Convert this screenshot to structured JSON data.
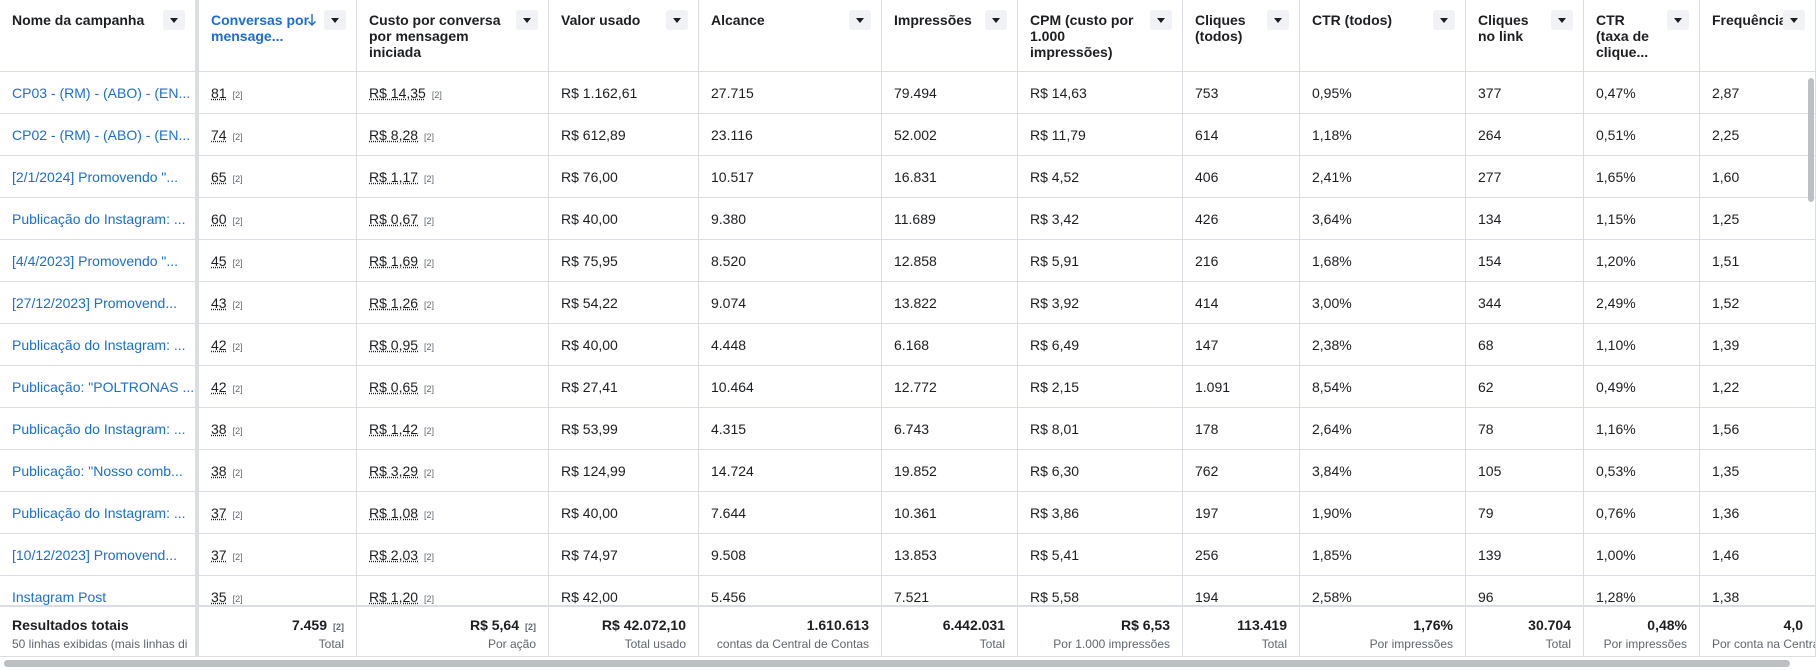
{
  "table": {
    "headers": [
      "Nome da campanha",
      "Conversas por mensage...",
      "Custo por conversa por mensagem iniciada",
      "Valor usado",
      "Alcance",
      "Impressões",
      "CPM (custo por 1.000 impressões)",
      "Cliques (todos)",
      "CTR (todos)",
      "Cliques no link",
      "CTR (taxa de clique...",
      "Frequência"
    ],
    "rows": [
      [
        "CP03 - (RM) - (ABO) - (EN...",
        {
          "value": "81",
          "note": "[2]"
        },
        {
          "value": "R$ 14,35",
          "note": "[2]"
        },
        "R$ 1.162,61",
        "27.715",
        "79.494",
        "R$ 14,63",
        "753",
        "0,95%",
        "377",
        "0,47%",
        "2,87"
      ],
      [
        "CP02 - (RM) - (ABO) - (EN...",
        {
          "value": "74",
          "note": "[2]"
        },
        {
          "value": "R$ 8,28",
          "note": "[2]"
        },
        "R$ 612,89",
        "23.116",
        "52.002",
        "R$ 11,79",
        "614",
        "1,18%",
        "264",
        "0,51%",
        "2,25"
      ],
      [
        "[2/1/2024] Promovendo \"...",
        {
          "value": "65",
          "note": "[2]"
        },
        {
          "value": "R$ 1,17",
          "note": "[2]"
        },
        "R$ 76,00",
        "10.517",
        "16.831",
        "R$ 4,52",
        "406",
        "2,41%",
        "277",
        "1,65%",
        "1,60"
      ],
      [
        "Publicação do Instagram: ...",
        {
          "value": "60",
          "note": "[2]"
        },
        {
          "value": "R$ 0,67",
          "note": "[2]"
        },
        "R$ 40,00",
        "9.380",
        "11.689",
        "R$ 3,42",
        "426",
        "3,64%",
        "134",
        "1,15%",
        "1,25"
      ],
      [
        "[4/4/2023] Promovendo \"...",
        {
          "value": "45",
          "note": "[2]"
        },
        {
          "value": "R$ 1,69",
          "note": "[2]"
        },
        "R$ 75,95",
        "8.520",
        "12.858",
        "R$ 5,91",
        "216",
        "1,68%",
        "154",
        "1,20%",
        "1,51"
      ],
      [
        "[27/12/2023] Promovend...",
        {
          "value": "43",
          "note": "[2]"
        },
        {
          "value": "R$ 1,26",
          "note": "[2]"
        },
        "R$ 54,22",
        "9.074",
        "13.822",
        "R$ 3,92",
        "414",
        "3,00%",
        "344",
        "2,49%",
        "1,52"
      ],
      [
        "Publicação do Instagram: ...",
        {
          "value": "42",
          "note": "[2]"
        },
        {
          "value": "R$ 0,95",
          "note": "[2]"
        },
        "R$ 40,00",
        "4.448",
        "6.168",
        "R$ 6,49",
        "147",
        "2,38%",
        "68",
        "1,10%",
        "1,39"
      ],
      [
        "Publicação: \"POLTRONAS ...",
        {
          "value": "42",
          "note": "[2]"
        },
        {
          "value": "R$ 0,65",
          "note": "[2]"
        },
        "R$ 27,41",
        "10.464",
        "12.772",
        "R$ 2,15",
        "1.091",
        "8,54%",
        "62",
        "0,49%",
        "1,22"
      ],
      [
        "Publicação do Instagram: ...",
        {
          "value": "38",
          "note": "[2]"
        },
        {
          "value": "R$ 1,42",
          "note": "[2]"
        },
        "R$ 53,99",
        "4.315",
        "6.743",
        "R$ 8,01",
        "178",
        "2,64%",
        "78",
        "1,16%",
        "1,56"
      ],
      [
        "Publicação: \"Nosso comb...",
        {
          "value": "38",
          "note": "[2]"
        },
        {
          "value": "R$ 3,29",
          "note": "[2]"
        },
        "R$ 124,99",
        "14.724",
        "19.852",
        "R$ 6,30",
        "762",
        "3,84%",
        "105",
        "0,53%",
        "1,35"
      ],
      [
        "Publicação do Instagram: ...",
        {
          "value": "37",
          "note": "[2]"
        },
        {
          "value": "R$ 1,08",
          "note": "[2]"
        },
        "R$ 40,00",
        "7.644",
        "10.361",
        "R$ 3,86",
        "197",
        "1,90%",
        "79",
        "0,76%",
        "1,36"
      ],
      [
        "[10/12/2023] Promovend...",
        {
          "value": "37",
          "note": "[2]"
        },
        {
          "value": "R$ 2,03",
          "note": "[2]"
        },
        "R$ 74,97",
        "9.508",
        "13.853",
        "R$ 5,41",
        "256",
        "1,85%",
        "139",
        "1,00%",
        "1,46"
      ],
      [
        "Instagram Post",
        {
          "value": "35",
          "note": "[2]"
        },
        {
          "value": "R$ 1,20",
          "note": "[2]"
        },
        "R$ 42,00",
        "5.456",
        "7.521",
        "R$ 5,58",
        "194",
        "2,58%",
        "96",
        "1,28%",
        "1,38"
      ]
    ],
    "totals": [
      {
        "value": "Resultados totais",
        "sub": "50 linhas exibidas (mais linhas di"
      },
      {
        "value": "7.459",
        "note": "[2]",
        "sub": "Total"
      },
      {
        "value": "R$ 5,64",
        "note": "[2]",
        "sub": "Por ação"
      },
      {
        "value": "R$ 42.072,10",
        "sub": "Total usado"
      },
      {
        "value": "1.610.613",
        "sub": "contas da Central de Contas"
      },
      {
        "value": "6.442.031",
        "sub": "Total"
      },
      {
        "value": "R$ 6,53",
        "sub": "Por 1.000 impressões"
      },
      {
        "value": "113.419",
        "sub": "Total"
      },
      {
        "value": "1,76%",
        "sub": "Por impressões"
      },
      {
        "value": "30.704",
        "sub": "Total"
      },
      {
        "value": "0,48%",
        "sub": "Por impressões"
      },
      {
        "value": "4,0",
        "sub": "Por conta na Central"
      }
    ]
  }
}
